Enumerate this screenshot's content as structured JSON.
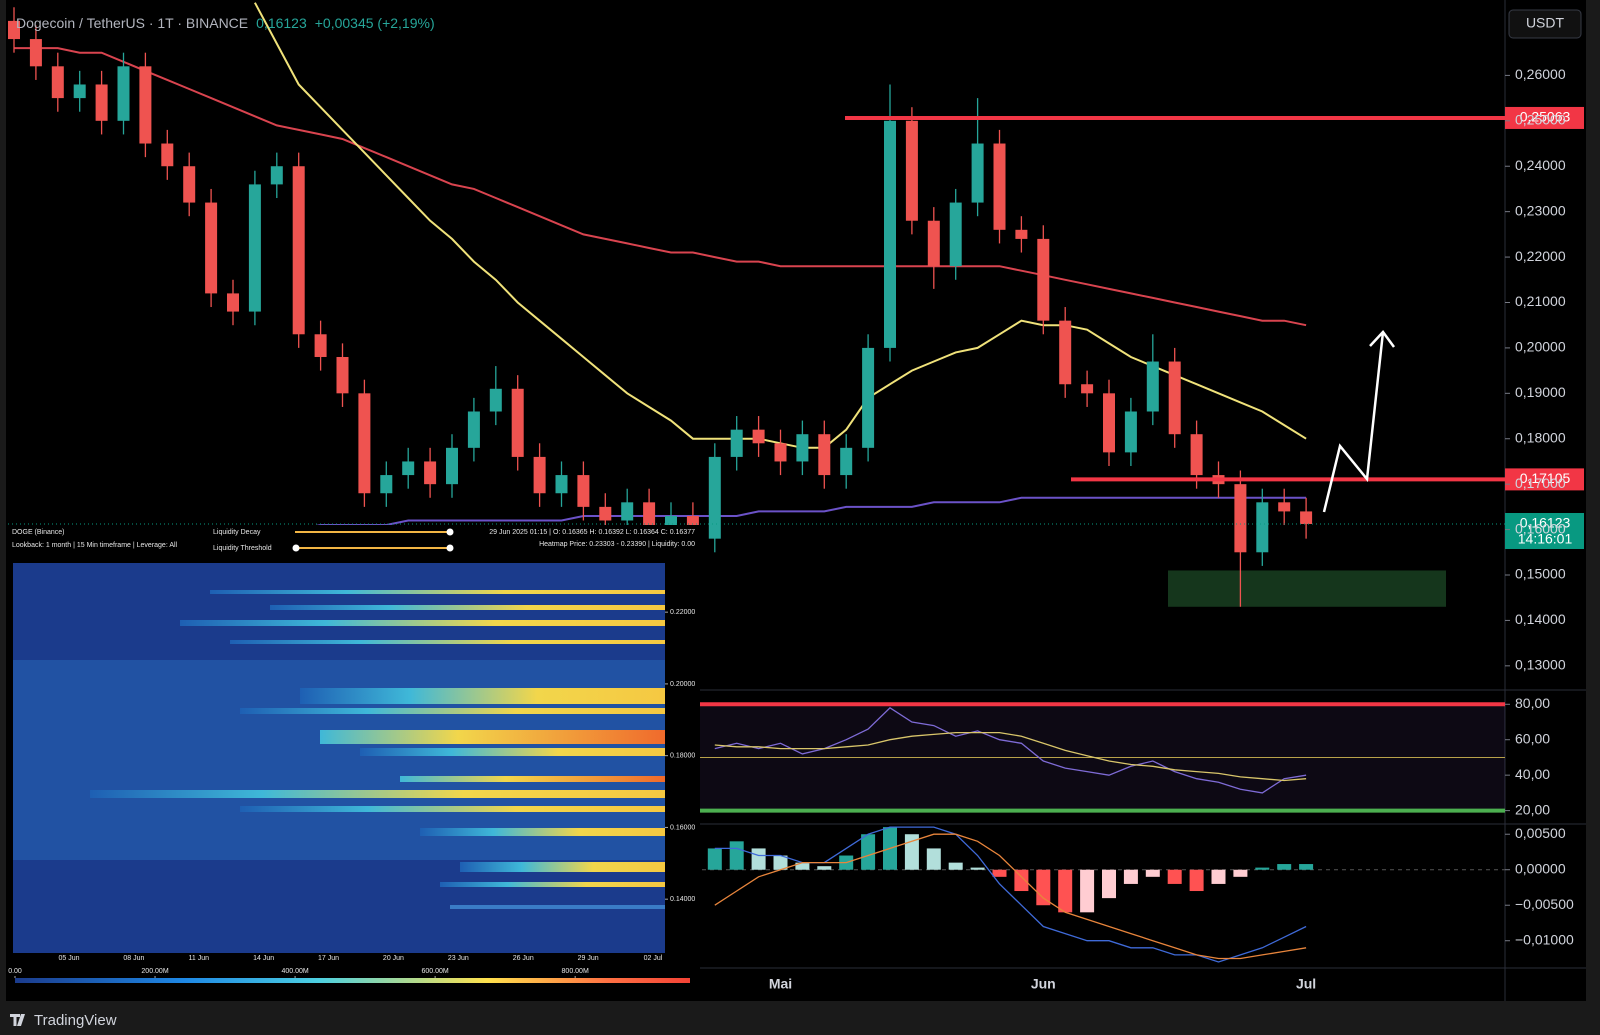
{
  "header": {
    "symbol": "Dogecoin / TetherUS · 1T · BINANCE",
    "price": "0,16123",
    "change": "+0,00345 (+2,19%)",
    "currency": "USDT",
    "footer": "TradingView"
  },
  "chart_data": [
    {
      "type": "candlestick",
      "categories": [
        null,
        null,
        null,
        null,
        null,
        null,
        null,
        null,
        null,
        null,
        null,
        null,
        null,
        null,
        null,
        null,
        null,
        null,
        null,
        null,
        null,
        null,
        null,
        null,
        null,
        null,
        null,
        null,
        null,
        null,
        null,
        null,
        null,
        null,
        null,
        "Mai",
        null,
        null,
        null,
        null,
        null,
        null,
        null,
        null,
        null,
        null,
        null,
        "Jun",
        null,
        null,
        null,
        null,
        null,
        null,
        null,
        null,
        null,
        null,
        null,
        "Jul"
      ],
      "up_color": "#26a69a",
      "down_color": "#ef5350",
      "candles": [
        [
          0.272,
          0.275,
          0.265,
          0.268
        ],
        [
          0.268,
          0.271,
          0.259,
          0.262
        ],
        [
          0.262,
          0.265,
          0.252,
          0.255
        ],
        [
          0.255,
          0.261,
          0.252,
          0.258
        ],
        [
          0.258,
          0.261,
          0.247,
          0.25
        ],
        [
          0.25,
          0.265,
          0.247,
          0.262
        ],
        [
          0.262,
          0.265,
          0.242,
          0.245
        ],
        [
          0.245,
          0.248,
          0.237,
          0.24
        ],
        [
          0.24,
          0.243,
          0.229,
          0.232
        ],
        [
          0.232,
          0.235,
          0.209,
          0.212
        ],
        [
          0.212,
          0.215,
          0.205,
          0.208
        ],
        [
          0.208,
          0.239,
          0.205,
          0.236
        ],
        [
          0.236,
          0.243,
          0.233,
          0.24
        ],
        [
          0.24,
          0.243,
          0.2,
          0.203
        ],
        [
          0.203,
          0.206,
          0.195,
          0.198
        ],
        [
          0.198,
          0.201,
          0.187,
          0.19
        ],
        [
          0.19,
          0.193,
          0.165,
          0.168
        ],
        [
          0.168,
          0.175,
          0.165,
          0.172
        ],
        [
          0.172,
          0.178,
          0.169,
          0.175
        ],
        [
          0.175,
          0.178,
          0.167,
          0.17
        ],
        [
          0.17,
          0.181,
          0.167,
          0.178
        ],
        [
          0.178,
          0.189,
          0.175,
          0.186
        ],
        [
          0.186,
          0.196,
          0.183,
          0.191
        ],
        [
          0.191,
          0.194,
          0.173,
          0.176
        ],
        [
          0.176,
          0.179,
          0.165,
          0.168
        ],
        [
          0.168,
          0.175,
          0.165,
          0.172
        ],
        [
          0.172,
          0.175,
          0.162,
          0.165
        ],
        [
          0.165,
          0.168,
          0.159,
          0.162
        ],
        [
          0.162,
          0.169,
          0.159,
          0.166
        ],
        [
          0.166,
          0.169,
          0.157,
          0.16
        ],
        [
          0.16,
          0.166,
          0.157,
          0.163
        ],
        [
          0.163,
          0.166,
          0.155,
          0.158
        ],
        [
          0.158,
          0.179,
          0.155,
          0.176
        ],
        [
          0.176,
          0.185,
          0.173,
          0.182
        ],
        [
          0.182,
          0.185,
          0.176,
          0.179
        ],
        [
          0.179,
          0.182,
          0.172,
          0.175
        ],
        [
          0.175,
          0.184,
          0.172,
          0.181
        ],
        [
          0.181,
          0.184,
          0.169,
          0.172
        ],
        [
          0.172,
          0.181,
          0.169,
          0.178
        ],
        [
          0.178,
          0.203,
          0.175,
          0.2
        ],
        [
          0.2,
          0.258,
          0.197,
          0.25
        ],
        [
          0.25,
          0.253,
          0.225,
          0.228
        ],
        [
          0.228,
          0.231,
          0.213,
          0.218
        ],
        [
          0.218,
          0.235,
          0.215,
          0.232
        ],
        [
          0.232,
          0.255,
          0.229,
          0.245
        ],
        [
          0.245,
          0.248,
          0.223,
          0.226
        ],
        [
          0.226,
          0.229,
          0.221,
          0.224
        ],
        [
          0.224,
          0.227,
          0.203,
          0.206
        ],
        [
          0.206,
          0.209,
          0.189,
          0.192
        ],
        [
          0.192,
          0.195,
          0.187,
          0.19
        ],
        [
          0.19,
          0.193,
          0.174,
          0.177
        ],
        [
          0.177,
          0.189,
          0.174,
          0.186
        ],
        [
          0.186,
          0.203,
          0.183,
          0.197
        ],
        [
          0.197,
          0.2,
          0.178,
          0.181
        ],
        [
          0.181,
          0.184,
          0.169,
          0.172
        ],
        [
          0.172,
          0.175,
          0.167,
          0.17
        ],
        [
          0.17,
          0.173,
          0.143,
          0.155
        ],
        [
          0.155,
          0.169,
          0.152,
          0.166
        ],
        [
          0.166,
          0.169,
          0.161,
          0.164
        ],
        [
          0.164,
          0.167,
          0.158,
          0.16123
        ]
      ],
      "series": [
        {
          "color": "#d9444f",
          "values": [
            0.266,
            0.266,
            0.266,
            0.265,
            0.265,
            0.263,
            0.261,
            0.259,
            0.257,
            0.255,
            0.253,
            0.251,
            0.249,
            0.248,
            0.247,
            0.246,
            0.244,
            0.242,
            0.24,
            0.238,
            0.236,
            0.235,
            0.233,
            0.231,
            0.229,
            0.227,
            0.225,
            0.224,
            0.223,
            0.222,
            0.221,
            0.221,
            0.22,
            0.219,
            0.219,
            0.218,
            0.218,
            0.218,
            0.218,
            0.218,
            0.218,
            0.218,
            0.218,
            0.218,
            0.218,
            0.218,
            0.217,
            0.216,
            0.215,
            0.214,
            0.213,
            0.212,
            0.211,
            0.21,
            0.209,
            0.208,
            0.207,
            0.206,
            0.206,
            0.205
          ]
        },
        {
          "color": "#f0e27a",
          "values": [
            null,
            null,
            null,
            null,
            null,
            null,
            null,
            null,
            null,
            null,
            null,
            0.276,
            0.267,
            0.258,
            0.253,
            0.248,
            0.243,
            0.238,
            0.233,
            0.228,
            0.224,
            0.219,
            0.215,
            0.21,
            0.206,
            0.202,
            0.198,
            0.194,
            0.19,
            0.187,
            0.184,
            0.18,
            0.18,
            0.18,
            0.18,
            0.179,
            0.178,
            0.178,
            0.182,
            0.189,
            0.192,
            0.195,
            0.197,
            0.199,
            0.2,
            0.203,
            0.206,
            0.205,
            0.205,
            0.204,
            0.201,
            0.198,
            0.196,
            0.194,
            0.192,
            0.19,
            0.188,
            0.186,
            0.183,
            0.18
          ]
        },
        {
          "color": "#6b52c8",
          "values": [
            null,
            null,
            null,
            null,
            null,
            null,
            null,
            null,
            null,
            0.158,
            0.159,
            0.159,
            0.16,
            0.16,
            0.161,
            0.161,
            0.161,
            0.161,
            0.162,
            0.162,
            0.162,
            0.162,
            0.162,
            0.162,
            0.162,
            0.162,
            0.163,
            0.163,
            0.163,
            0.163,
            0.163,
            0.163,
            0.163,
            0.163,
            0.164,
            0.164,
            0.164,
            0.164,
            0.165,
            0.165,
            0.165,
            0.165,
            0.166,
            0.166,
            0.166,
            0.166,
            0.167,
            0.167,
            0.167,
            0.167,
            0.167,
            0.167,
            0.167,
            0.167,
            0.167,
            0.167,
            0.167,
            0.167,
            0.167,
            0.167
          ]
        }
      ],
      "levels": [
        {
          "value": 0.25063,
          "label": "0,25063",
          "color": "#f23645"
        },
        {
          "value": 0.17105,
          "label": "0,17105",
          "color": "#f23645"
        }
      ],
      "last": {
        "value": 0.16123,
        "label": "0,16123",
        "countdown": "14:16:01",
        "color": "#089981"
      },
      "zone": {
        "low": 0.143,
        "high": 0.151,
        "color": "#15361c"
      },
      "ylim": [
        0.1249,
        0.2766
      ],
      "yticks": [
        {
          "value": 0.13,
          "label": "0,13000"
        },
        {
          "value": 0.14,
          "label": "0,14000"
        },
        {
          "value": 0.15,
          "label": "0,15000"
        },
        {
          "value": 0.16,
          "label": "0,16000"
        },
        {
          "value": 0.17,
          "label": "0,17000"
        },
        {
          "value": 0.18,
          "label": "0,18000"
        },
        {
          "value": 0.19,
          "label": "0,19000"
        },
        {
          "value": 0.2,
          "label": "0,20000"
        },
        {
          "value": 0.21,
          "label": "0,21000"
        },
        {
          "value": 0.22,
          "label": "0,22000"
        },
        {
          "value": 0.23,
          "label": "0,23000"
        },
        {
          "value": 0.24,
          "label": "0,24000"
        },
        {
          "value": 0.25,
          "label": "0,25000"
        },
        {
          "value": 0.26,
          "label": "0,26000"
        }
      ]
    },
    {
      "type": "line",
      "series": [
        {
          "color": "#7e6bd6",
          "values": [
            null,
            null,
            null,
            null,
            null,
            null,
            null,
            null,
            null,
            null,
            null,
            null,
            null,
            null,
            null,
            null,
            null,
            null,
            null,
            null,
            null,
            null,
            null,
            null,
            null,
            null,
            null,
            null,
            null,
            null,
            null,
            null,
            55,
            58,
            55,
            58,
            52,
            55,
            60,
            66,
            78,
            70,
            68,
            62,
            65,
            60,
            58,
            48,
            44,
            42,
            40,
            45,
            48,
            42,
            38,
            36,
            32,
            30,
            38,
            40
          ]
        },
        {
          "color": "#d8c56a",
          "values": [
            null,
            null,
            null,
            null,
            null,
            null,
            null,
            null,
            null,
            null,
            null,
            null,
            null,
            null,
            null,
            null,
            null,
            null,
            null,
            null,
            null,
            null,
            null,
            null,
            null,
            null,
            null,
            null,
            null,
            null,
            null,
            null,
            57,
            56,
            56,
            55,
            55,
            55,
            56,
            57,
            60,
            62,
            63,
            64,
            64,
            64,
            62,
            58,
            54,
            51,
            48,
            46,
            45,
            43,
            42,
            41,
            39,
            38,
            37,
            38
          ]
        }
      ],
      "bands": [
        {
          "value": 80,
          "color": "#f23645"
        },
        {
          "value": 50,
          "color": "#b8a24a"
        },
        {
          "value": 20,
          "color": "#4caf50"
        }
      ],
      "ylim": [
        13,
        87.5
      ],
      "yticks": [
        {
          "value": 20,
          "label": "20,00"
        },
        {
          "value": 40,
          "label": "40,00"
        },
        {
          "value": 60,
          "label": "60,00"
        },
        {
          "value": 80,
          "label": "80,00"
        }
      ]
    },
    {
      "type": "macd",
      "histogram": [
        null,
        null,
        null,
        null,
        null,
        null,
        null,
        null,
        null,
        null,
        null,
        null,
        null,
        null,
        null,
        null,
        null,
        null,
        null,
        null,
        null,
        null,
        null,
        null,
        null,
        null,
        null,
        null,
        null,
        null,
        null,
        null,
        0.003,
        0.004,
        0.003,
        0.002,
        0.001,
        0.0005,
        0.002,
        0.005,
        0.006,
        0.005,
        0.003,
        0.001,
        0.0003,
        -0.001,
        -0.003,
        -0.005,
        -0.006,
        -0.006,
        -0.004,
        -0.002,
        -0.001,
        -0.002,
        -0.003,
        -0.002,
        -0.001,
        0.0003,
        0.0008,
        0.0008
      ],
      "series": [
        {
          "color": "#3f6ad8",
          "values": [
            null,
            null,
            null,
            null,
            null,
            null,
            null,
            null,
            null,
            null,
            null,
            null,
            null,
            null,
            null,
            null,
            null,
            null,
            null,
            null,
            null,
            null,
            null,
            null,
            null,
            null,
            null,
            null,
            null,
            null,
            null,
            null,
            0.003,
            0.003,
            0.002,
            0.002,
            0.001,
            0.001,
            0.003,
            0.005,
            0.006,
            0.006,
            0.006,
            0.005,
            0.002,
            -0.002,
            -0.005,
            -0.008,
            -0.009,
            -0.01,
            -0.01,
            -0.011,
            -0.011,
            -0.012,
            -0.012,
            -0.013,
            -0.012,
            -0.011,
            -0.0095,
            -0.008
          ]
        },
        {
          "color": "#e8853c",
          "values": [
            null,
            null,
            null,
            null,
            null,
            null,
            null,
            null,
            null,
            null,
            null,
            null,
            null,
            null,
            null,
            null,
            null,
            null,
            null,
            null,
            null,
            null,
            null,
            null,
            null,
            null,
            null,
            null,
            null,
            null,
            null,
            null,
            -0.005,
            -0.003,
            -0.001,
            0.0,
            0.001,
            0.001,
            0.001,
            0.002,
            0.003,
            0.004,
            0.005,
            0.005,
            0.004,
            0.002,
            -0.001,
            -0.004,
            -0.006,
            -0.007,
            -0.008,
            -0.009,
            -0.01,
            -0.011,
            -0.012,
            -0.0125,
            -0.0125,
            -0.012,
            -0.0115,
            -0.011
          ]
        }
      ],
      "ylim": [
        -0.0137,
        0.0063
      ],
      "yticks": [
        {
          "value": -0.01,
          "label": "−0,01000"
        },
        {
          "value": -0.005,
          "label": "−0,00500"
        },
        {
          "value": 0,
          "label": "0,00000"
        },
        {
          "value": 0.005,
          "label": "0,00500"
        }
      ]
    },
    {
      "type": "heatmap",
      "title": "DOGE (Binance)",
      "subtitle": "Lookback: 1 month | 15 Min timeframe | Leverage: All",
      "controls": [
        "Liquidity Decay",
        "Liquidity Threshold"
      ],
      "info": [
        "29 Jun 2025 01:15 | O: 0.16365 H: 0.16392 L: 0.16364 C: 0.16377",
        "Heatmap Price: 0.23303 - 0.23390 | Liquidity: 0.00"
      ],
      "categories": [
        "05 Jun",
        "08 Jun",
        "11 Jun",
        "14 Jun",
        "17 Jun",
        "20 Jun",
        "23 Jun",
        "26 Jun",
        "29 Jun",
        "02 Jul"
      ],
      "ylim": [
        0.125,
        0.2337
      ],
      "yticks": [
        {
          "value": 0.14,
          "label": "0.14000"
        },
        {
          "value": 0.16,
          "label": "0.16000"
        },
        {
          "value": 0.18,
          "label": "0.18000"
        },
        {
          "value": 0.2,
          "label": "0.20000"
        },
        {
          "value": 0.22,
          "label": "0.22000"
        }
      ],
      "colorbar_lim": [
        0,
        964000000
      ],
      "colorbar_ticks": [
        {
          "value": 0,
          "label": "0.00"
        },
        {
          "value": 200000000,
          "label": "200.00M"
        },
        {
          "value": 400000000,
          "label": "400.00M"
        },
        {
          "value": 600000000,
          "label": "600.00M"
        },
        {
          "value": 800000000,
          "label": "800.00M"
        }
      ]
    }
  ]
}
